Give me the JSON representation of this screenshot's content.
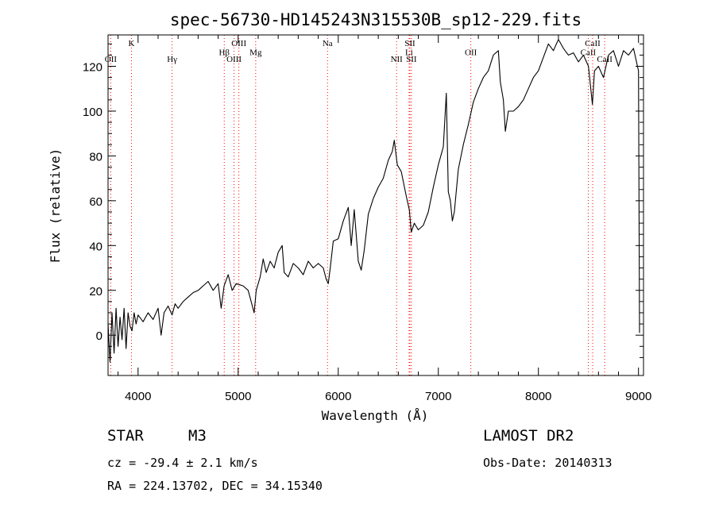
{
  "chart_data": {
    "type": "line",
    "title": "spec-56730-HD145243N315530B_sp12-229.fits",
    "xlabel": "Wavelength (Å)",
    "ylabel": "Flux (relative)",
    "xlim": [
      3700,
      9050
    ],
    "ylim": [
      -18,
      134
    ],
    "xticks": [
      4000,
      5000,
      6000,
      7000,
      8000,
      9000
    ],
    "yticks": [
      0,
      20,
      40,
      60,
      80,
      100,
      120
    ],
    "grid": false,
    "line_color": "#000000",
    "marker_color": "#ff0000",
    "series": [
      {
        "points": [
          [
            3700,
            5
          ],
          [
            3720,
            -12
          ],
          [
            3740,
            10
          ],
          [
            3760,
            -8
          ],
          [
            3780,
            12
          ],
          [
            3800,
            -5
          ],
          [
            3820,
            8
          ],
          [
            3840,
            -2
          ],
          [
            3860,
            12
          ],
          [
            3880,
            -6
          ],
          [
            3900,
            10
          ],
          [
            3920,
            4
          ],
          [
            3940,
            2
          ],
          [
            3960,
            10
          ],
          [
            3980,
            5
          ],
          [
            4000,
            9
          ],
          [
            4050,
            6
          ],
          [
            4100,
            10
          ],
          [
            4150,
            7
          ],
          [
            4200,
            12
          ],
          [
            4230,
            0
          ],
          [
            4260,
            10
          ],
          [
            4300,
            13
          ],
          [
            4340,
            9
          ],
          [
            4370,
            14
          ],
          [
            4400,
            12
          ],
          [
            4450,
            15
          ],
          [
            4500,
            17
          ],
          [
            4550,
            19
          ],
          [
            4600,
            20
          ],
          [
            4650,
            22
          ],
          [
            4700,
            24
          ],
          [
            4750,
            20
          ],
          [
            4800,
            23
          ],
          [
            4830,
            12
          ],
          [
            4860,
            22
          ],
          [
            4900,
            27
          ],
          [
            4940,
            20
          ],
          [
            4980,
            23
          ],
          [
            5050,
            22
          ],
          [
            5100,
            20
          ],
          [
            5160,
            10
          ],
          [
            5180,
            20
          ],
          [
            5220,
            26
          ],
          [
            5250,
            34
          ],
          [
            5280,
            28
          ],
          [
            5320,
            33
          ],
          [
            5360,
            30
          ],
          [
            5400,
            37
          ],
          [
            5440,
            40
          ],
          [
            5460,
            28
          ],
          [
            5500,
            26
          ],
          [
            5550,
            32
          ],
          [
            5600,
            30
          ],
          [
            5650,
            27
          ],
          [
            5700,
            33
          ],
          [
            5750,
            30
          ],
          [
            5800,
            32
          ],
          [
            5850,
            30
          ],
          [
            5880,
            25
          ],
          [
            5900,
            23
          ],
          [
            5920,
            30
          ],
          [
            5950,
            42
          ],
          [
            6000,
            43
          ],
          [
            6050,
            51
          ],
          [
            6100,
            57
          ],
          [
            6130,
            40
          ],
          [
            6160,
            56
          ],
          [
            6200,
            33
          ],
          [
            6230,
            29
          ],
          [
            6260,
            38
          ],
          [
            6300,
            54
          ],
          [
            6350,
            61
          ],
          [
            6400,
            66
          ],
          [
            6450,
            70
          ],
          [
            6500,
            78
          ],
          [
            6540,
            82
          ],
          [
            6560,
            87
          ],
          [
            6590,
            76
          ],
          [
            6630,
            73
          ],
          [
            6680,
            62
          ],
          [
            6710,
            56
          ],
          [
            6730,
            46
          ],
          [
            6760,
            50
          ],
          [
            6800,
            47
          ],
          [
            6850,
            49
          ],
          [
            6900,
            55
          ],
          [
            6950,
            66
          ],
          [
            7000,
            76
          ],
          [
            7050,
            84
          ],
          [
            7080,
            108
          ],
          [
            7100,
            64
          ],
          [
            7120,
            60
          ],
          [
            7140,
            51
          ],
          [
            7160,
            55
          ],
          [
            7200,
            74
          ],
          [
            7250,
            85
          ],
          [
            7300,
            94
          ],
          [
            7350,
            104
          ],
          [
            7400,
            110
          ],
          [
            7450,
            115
          ],
          [
            7500,
            118
          ],
          [
            7550,
            125
          ],
          [
            7600,
            127
          ],
          [
            7620,
            113
          ],
          [
            7650,
            105
          ],
          [
            7670,
            91
          ],
          [
            7700,
            100
          ],
          [
            7750,
            100
          ],
          [
            7800,
            102
          ],
          [
            7850,
            105
          ],
          [
            7900,
            110
          ],
          [
            7950,
            115
          ],
          [
            8000,
            118
          ],
          [
            8050,
            124
          ],
          [
            8100,
            130
          ],
          [
            8150,
            127
          ],
          [
            8200,
            132
          ],
          [
            8250,
            128
          ],
          [
            8300,
            125
          ],
          [
            8350,
            126
          ],
          [
            8400,
            122
          ],
          [
            8450,
            125
          ],
          [
            8500,
            120
          ],
          [
            8540,
            103
          ],
          [
            8560,
            118
          ],
          [
            8600,
            120
          ],
          [
            8650,
            115
          ],
          [
            8680,
            121
          ],
          [
            8700,
            125
          ],
          [
            8750,
            127
          ],
          [
            8800,
            120
          ],
          [
            8850,
            127
          ],
          [
            8900,
            125
          ],
          [
            8950,
            128
          ],
          [
            9000,
            118
          ],
          [
            9010,
            1
          ]
        ]
      }
    ],
    "line_markers": [
      {
        "name": "OII",
        "wavelength": 3727,
        "label_y": 122
      },
      {
        "name": "K",
        "wavelength": 3934,
        "label_y": 129
      },
      {
        "name": "Hγ",
        "wavelength": 4340,
        "label_y": 122
      },
      {
        "name": "Hβ",
        "wavelength": 4861,
        "label_y": 125
      },
      {
        "name": "OIII",
        "wavelength": 4959,
        "label_y": 122
      },
      {
        "name": "OIII",
        "wavelength": 5007,
        "label_y": 129
      },
      {
        "name": "Mg",
        "wavelength": 5175,
        "label_y": 125
      },
      {
        "name": "Na",
        "wavelength": 5893,
        "label_y": 129
      },
      {
        "name": "NII",
        "wavelength": 6583,
        "label_y": 122
      },
      {
        "name": "Li",
        "wavelength": 6708,
        "label_y": 125
      },
      {
        "name": "SII",
        "wavelength": 6716,
        "label_y": 129
      },
      {
        "name": "SII",
        "wavelength": 6731,
        "label_y": 122
      },
      {
        "name": "OII",
        "wavelength": 7325,
        "label_y": 125
      },
      {
        "name": "CaII",
        "wavelength": 8498,
        "label_y": 125
      },
      {
        "name": "CaII",
        "wavelength": 8542,
        "label_y": 129
      },
      {
        "name": "CaII",
        "wavelength": 8662,
        "label_y": 122
      }
    ]
  },
  "info": {
    "object_class": "STAR",
    "subclass": "M3",
    "survey": "LAMOST DR2",
    "cz": "cz = -29.4 ± 2.1 km/s",
    "obs_date": "Obs-Date: 20140313",
    "coords": "RA = 224.13702, DEC =  34.15340"
  }
}
